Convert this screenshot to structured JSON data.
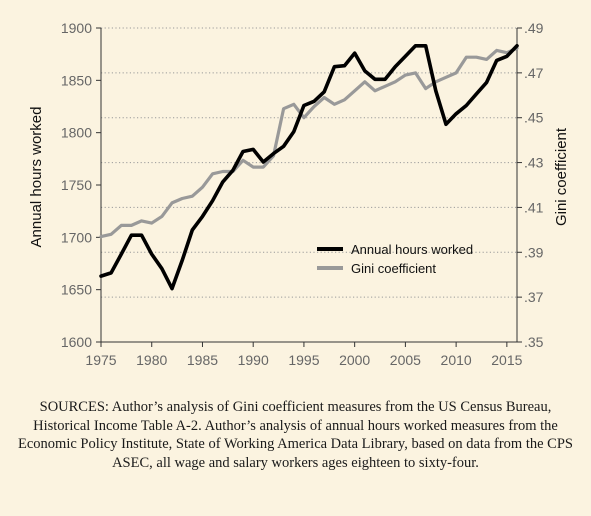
{
  "chart_data": {
    "type": "line",
    "title": "",
    "xlabel": "",
    "ylabel": "Annual hours worked",
    "y2label": "Gini coefficient",
    "xlim": [
      1975,
      2016
    ],
    "ylim": [
      1600,
      1900
    ],
    "y2lim": [
      0.35,
      0.49
    ],
    "x_ticks": [
      "1975",
      "1980",
      "1985",
      "1990",
      "1995",
      "2000",
      "2005",
      "2010",
      "2015"
    ],
    "y_ticks": [
      "1600",
      "1650",
      "1700",
      "1750",
      "1800",
      "1850",
      "1900"
    ],
    "y2_ticks": [
      ".35",
      ".37",
      ".39",
      ".41",
      ".43",
      ".45",
      ".47",
      ".49"
    ],
    "grid": "dotted horizontal lines at right-axis ticks",
    "legend_position": "center-right",
    "colors": {
      "hours": "#000000",
      "gini": "#999999",
      "background": "#fbf3e0"
    },
    "x": [
      1975,
      1976,
      1977,
      1978,
      1979,
      1980,
      1981,
      1982,
      1983,
      1984,
      1985,
      1986,
      1987,
      1988,
      1989,
      1990,
      1991,
      1992,
      1993,
      1994,
      1995,
      1996,
      1997,
      1998,
      1999,
      2000,
      2001,
      2002,
      2003,
      2004,
      2005,
      2006,
      2007,
      2008,
      2009,
      2010,
      2011,
      2012,
      2013,
      2014,
      2015,
      2016
    ],
    "series": [
      {
        "name": "Annual hours worked",
        "axis": "left",
        "values": [
          1663,
          1666,
          1684,
          1702,
          1702,
          1684,
          1670,
          1651,
          1678,
          1707,
          1720,
          1735,
          1753,
          1764,
          1782,
          1784,
          1772,
          1780,
          1787,
          1801,
          1826,
          1830,
          1839,
          1863,
          1864,
          1876,
          1859,
          1851,
          1851,
          1863,
          1873,
          1883,
          1883,
          1840,
          1808,
          1818,
          1826,
          1837,
          1848,
          1869,
          1873,
          1883
        ]
      },
      {
        "name": "Gini coefficient",
        "axis": "right",
        "values": [
          0.397,
          0.398,
          0.402,
          0.402,
          0.404,
          0.403,
          0.406,
          0.412,
          0.414,
          0.415,
          0.419,
          0.425,
          0.426,
          0.426,
          0.431,
          0.428,
          0.428,
          0.433,
          0.454,
          0.456,
          0.45,
          0.455,
          0.459,
          0.456,
          0.458,
          0.462,
          0.466,
          0.462,
          0.464,
          0.466,
          0.469,
          0.47,
          0.463,
          0.466,
          0.468,
          0.47,
          0.477,
          0.477,
          0.476,
          0.48,
          0.479,
          0.481
        ]
      }
    ]
  },
  "caption": "SOURCES: Author’s analysis of Gini coefficient measures from the US Census Bureau, Historical Income Table A-2. Author’s analysis of annual hours worked measures from the Economic Policy Institute, State of Working America Data Library, based on data from the CPS ASEC, all wage and salary workers ages eighteen to sixty-four."
}
